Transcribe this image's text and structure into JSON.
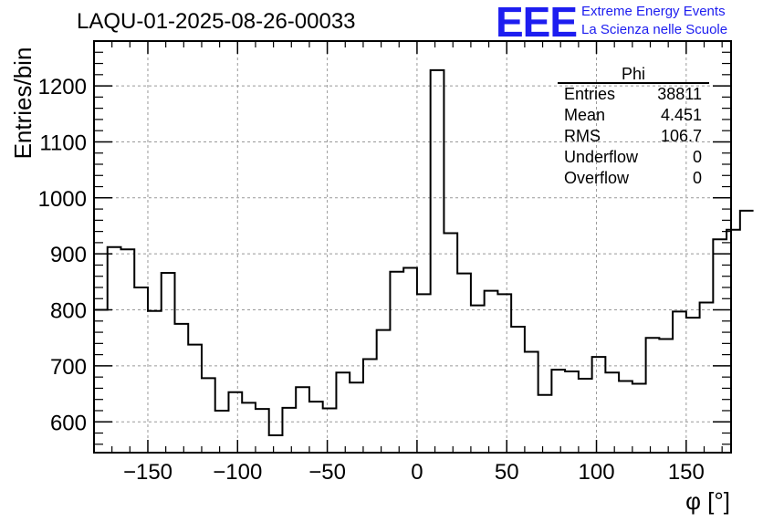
{
  "header": {
    "title": "LAQU-01-2025-08-26-00033",
    "logo_text": "EEE",
    "logo_line1": "Extreme Energy Events",
    "logo_line2": "La Scienza nelle Scuole",
    "brand_color": "#1d1df0"
  },
  "stats_box": {
    "name": "Phi",
    "rows": [
      {
        "label": "Entries",
        "value": "38811"
      },
      {
        "label": "Mean",
        "value": "4.451"
      },
      {
        "label": "RMS",
        "value": "106.7"
      },
      {
        "label": "Underflow",
        "value": "0"
      },
      {
        "label": "Overflow",
        "value": "0"
      }
    ]
  },
  "chart_data": {
    "type": "histogram",
    "title": "LAQU-01-2025-08-26-00033",
    "xlabel": "φ [°]",
    "ylabel": "Entries/bin",
    "xlim": [
      -180,
      175
    ],
    "ylim": [
      545,
      1280
    ],
    "bin_width": 7.5,
    "x_start": -180,
    "grid": true,
    "xticks": [
      -150,
      -100,
      -50,
      0,
      50,
      100,
      150
    ],
    "xtick_labels": [
      "−150",
      "−100",
      "−50",
      "0",
      "50",
      "100",
      "150"
    ],
    "yticks": [
      600,
      700,
      800,
      900,
      1000,
      1100,
      1200
    ],
    "ytick_labels": [
      "600",
      "700",
      "800",
      "900",
      "1000",
      "1100",
      "1200"
    ],
    "values": [
      800,
      912,
      908,
      840,
      798,
      866,
      775,
      738,
      678,
      620,
      653,
      634,
      623,
      576,
      625,
      662,
      636,
      624,
      688,
      670,
      712,
      764,
      868,
      875,
      828,
      1228,
      937,
      865,
      808,
      834,
      828,
      770,
      725,
      648,
      693,
      690,
      677,
      716,
      688,
      673,
      668,
      750,
      748,
      797,
      786,
      813,
      926,
      943,
      977
    ]
  }
}
